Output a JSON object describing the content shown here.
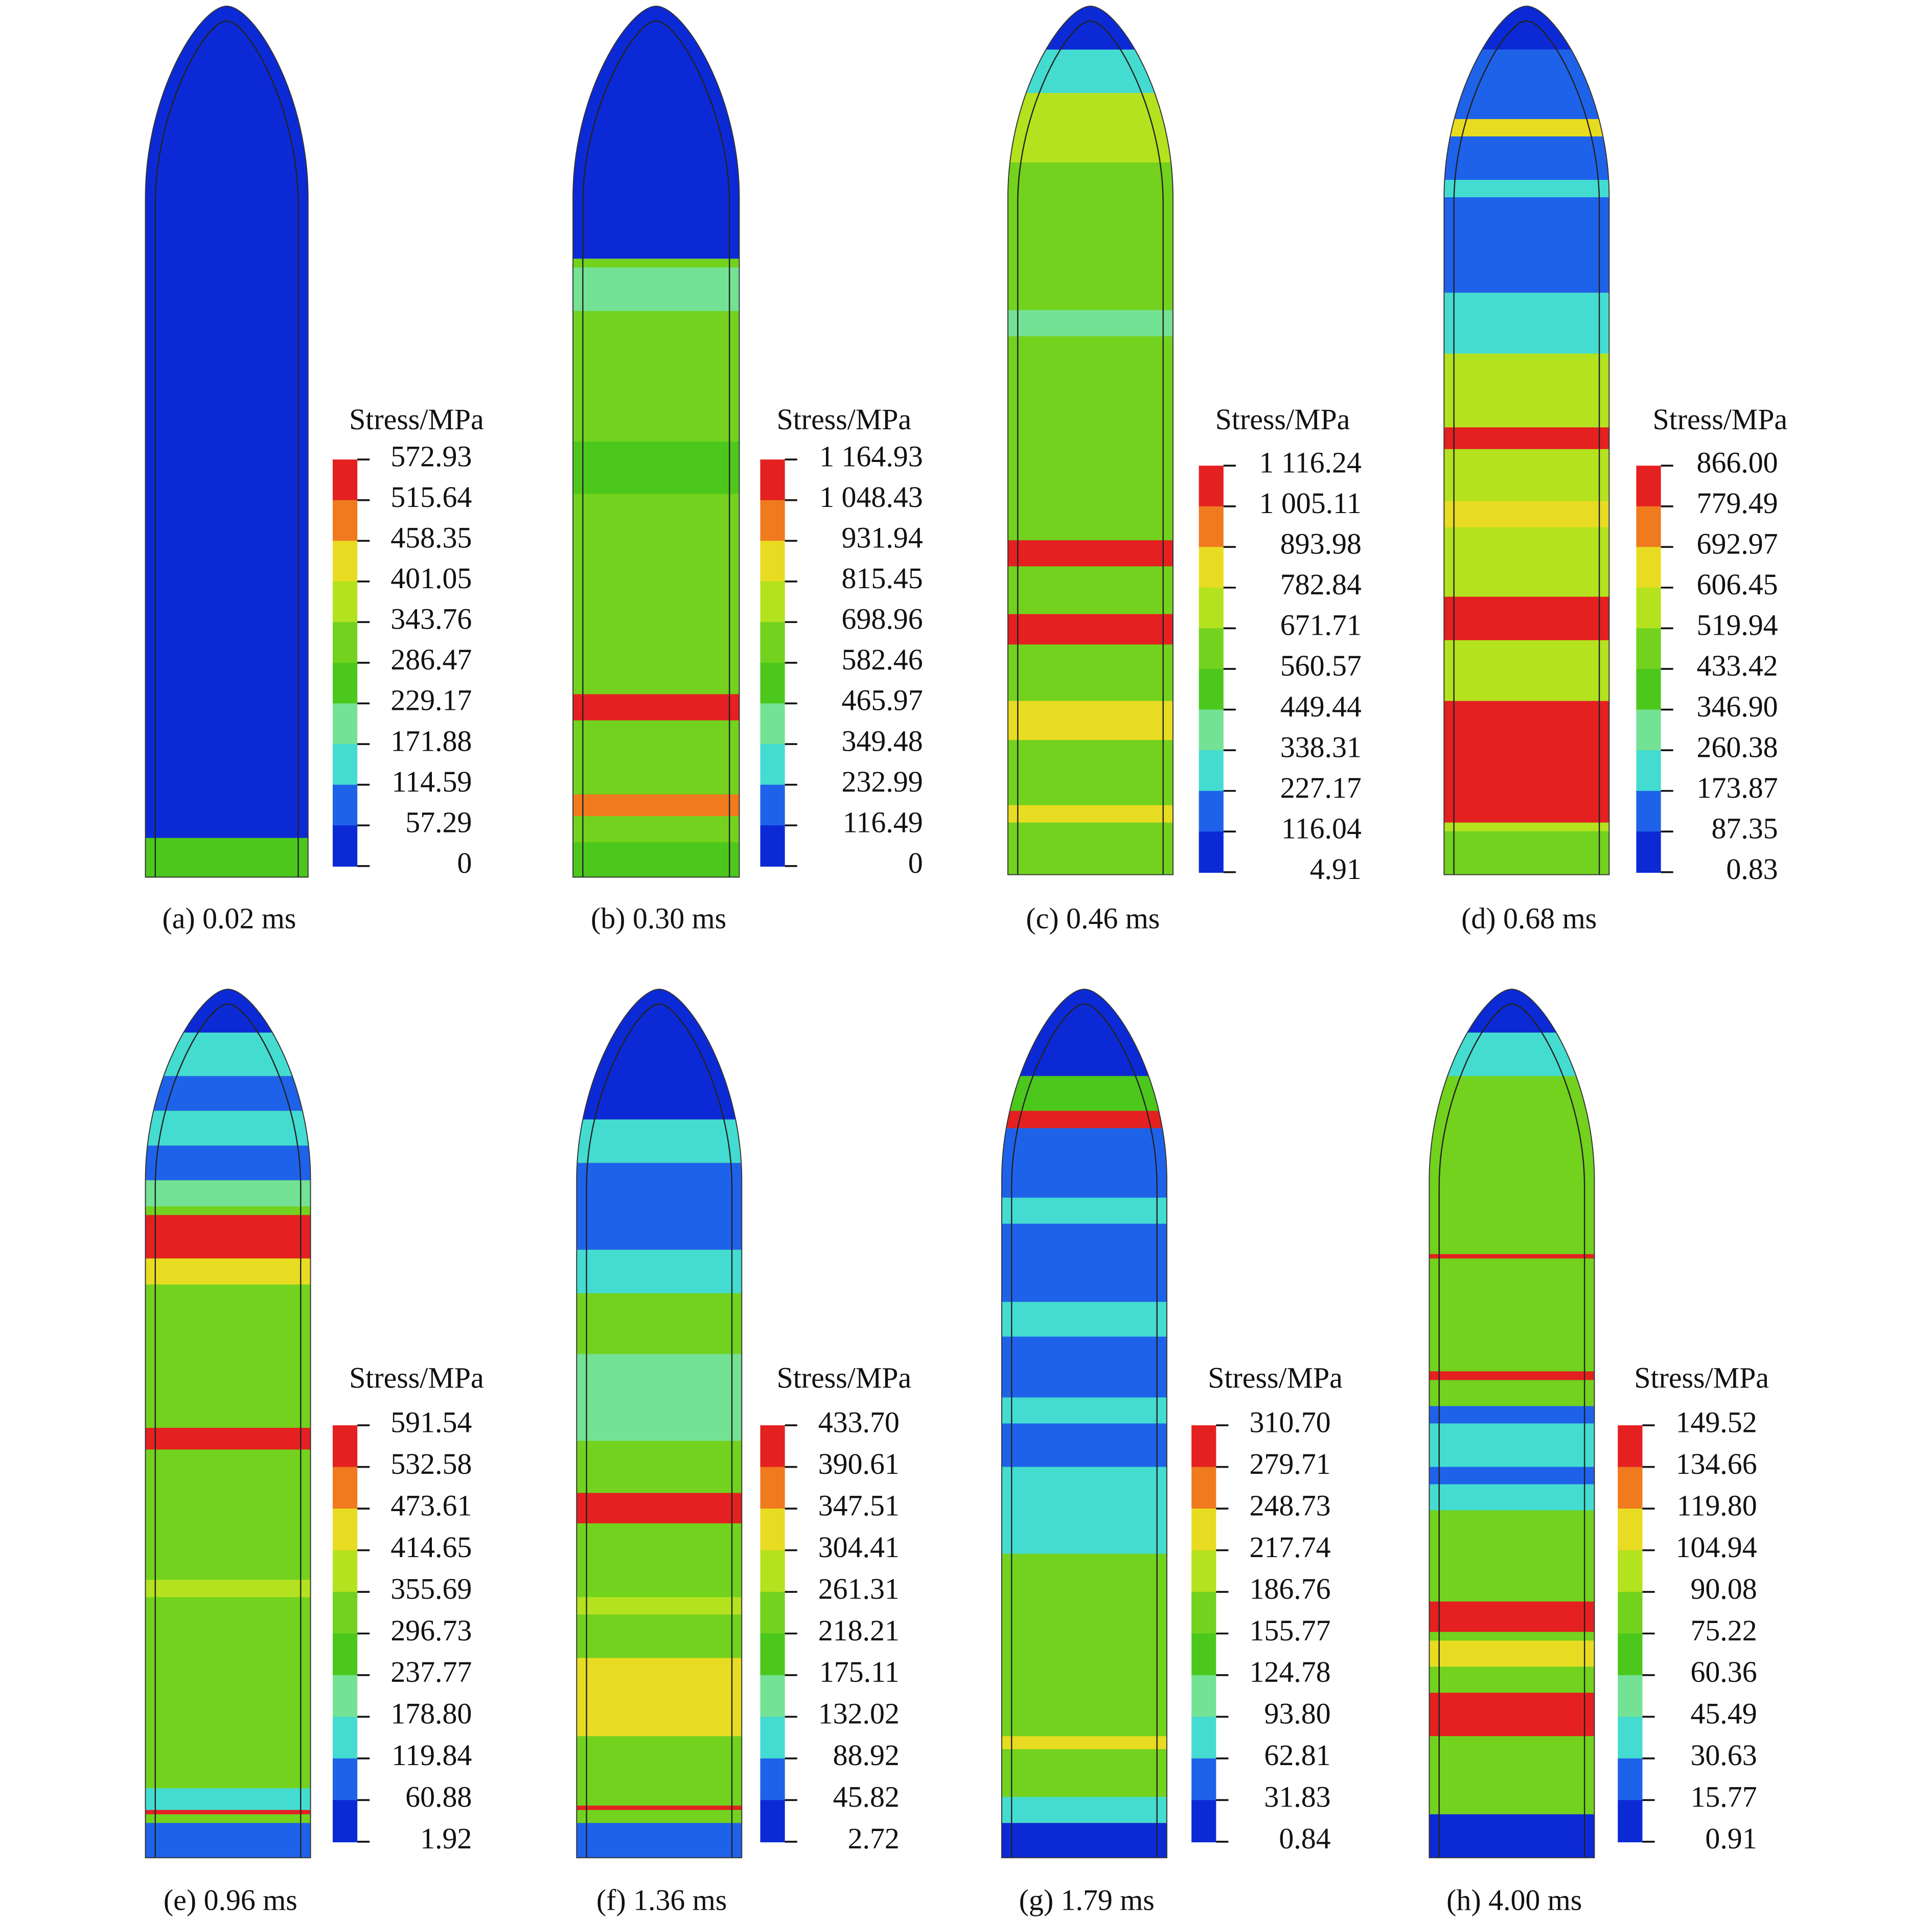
{
  "panels": [
    {
      "caption": "(a) 0.02 ms",
      "legend_title": "Stress/MPa",
      "legend_labels": [
        "572.93",
        "515.64",
        "458.35",
        "401.05",
        "343.76",
        "286.47",
        "229.17",
        "171.88",
        "114.59",
        "57.29",
        "0"
      ]
    },
    {
      "caption": "(b) 0.30 ms",
      "legend_title": "Stress/MPa",
      "legend_labels": [
        "1 164.93",
        "1 048.43",
        "931.94",
        "815.45",
        "698.96",
        "582.46",
        "465.97",
        "349.48",
        "232.99",
        "116.49",
        "0"
      ]
    },
    {
      "caption": "(c) 0.46 ms",
      "legend_title": "Stress/MPa",
      "legend_labels": [
        "1 116.24",
        "1 005.11",
        "893.98",
        "782.84",
        "671.71",
        "560.57",
        "449.44",
        "338.31",
        "227.17",
        "116.04",
        "4.91"
      ]
    },
    {
      "caption": "(d) 0.68 ms",
      "legend_title": "Stress/MPa",
      "legend_labels": [
        "866.00",
        "779.49",
        "692.97",
        "606.45",
        "519.94",
        "433.42",
        "346.90",
        "260.38",
        "173.87",
        "87.35",
        "0.83"
      ]
    },
    {
      "caption": "(e) 0.96 ms",
      "legend_title": "Stress/MPa",
      "legend_labels": [
        "591.54",
        "532.58",
        "473.61",
        "414.65",
        "355.69",
        "296.73",
        "237.77",
        "178.80",
        "119.84",
        "60.88",
        "1.92"
      ]
    },
    {
      "caption": "(f) 1.36 ms",
      "legend_title": "Stress/MPa",
      "legend_labels": [
        "433.70",
        "390.61",
        "347.51",
        "304.41",
        "261.31",
        "218.21",
        "175.11",
        "132.02",
        "88.92",
        "45.82",
        "2.72"
      ]
    },
    {
      "caption": "(g) 1.79 ms",
      "legend_title": "Stress/MPa",
      "legend_labels": [
        "310.70",
        "279.71",
        "248.73",
        "217.74",
        "186.76",
        "155.77",
        "124.78",
        "93.80",
        "62.81",
        "31.83",
        "0.84"
      ]
    },
    {
      "caption": "(h) 4.00 ms",
      "legend_title": "Stress/MPa",
      "legend_labels": [
        "149.52",
        "134.66",
        "119.80",
        "104.94",
        "90.08",
        "75.22",
        "60.36",
        "45.49",
        "30.63",
        "15.77",
        "0.91"
      ]
    }
  ]
}
